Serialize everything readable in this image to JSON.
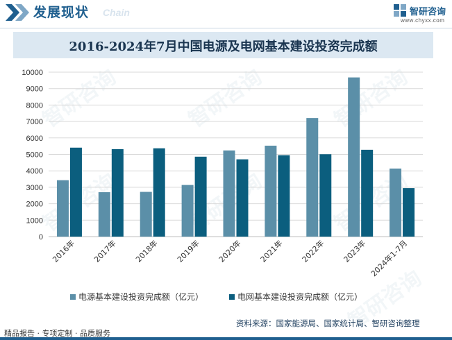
{
  "header": {
    "section_title": "发展现状",
    "section_subtitle": "Chain",
    "brand_name": "智研咨询",
    "brand_url": "www.chyxx.com",
    "watermark_text": "智研咨询"
  },
  "chart_data": {
    "type": "bar",
    "title": "2016-2024年7月中国电源及电网基本建设投资完成额",
    "xlabel": "",
    "ylabel": "",
    "ylim": [
      0,
      10000
    ],
    "yticks": [
      "0",
      "1000",
      "2000",
      "3000",
      "4000",
      "5000",
      "6000",
      "7000",
      "8000",
      "9000",
      "10000"
    ],
    "categories": [
      "2016年",
      "2017年",
      "2018年",
      "2019年",
      "2020年",
      "2021年",
      "2022年",
      "2023年",
      "2024年1-7月"
    ],
    "series": [
      {
        "name": "电源基本建设投资完成额（亿元）",
        "color": "#5b8fa8",
        "values": [
          3430,
          2700,
          2720,
          3140,
          5240,
          5530,
          7210,
          9680,
          4140
        ]
      },
      {
        "name": "电网基本建设投资完成额（亿元）",
        "color": "#0b5e7e",
        "values": [
          5410,
          5320,
          5370,
          4860,
          4700,
          4950,
          5010,
          5280,
          2950
        ]
      }
    ],
    "grid": true,
    "legend_position": "bottom"
  },
  "footer": {
    "left_text": "精品报告 · 专项定制 · 品质服务",
    "source_text": "资料来源：国家能源局、国家统计局、智研咨询整理"
  },
  "colors": {
    "brand": "#1f5f8f",
    "title_bg": "#dce8f2",
    "grid": "#d9d9d9"
  }
}
